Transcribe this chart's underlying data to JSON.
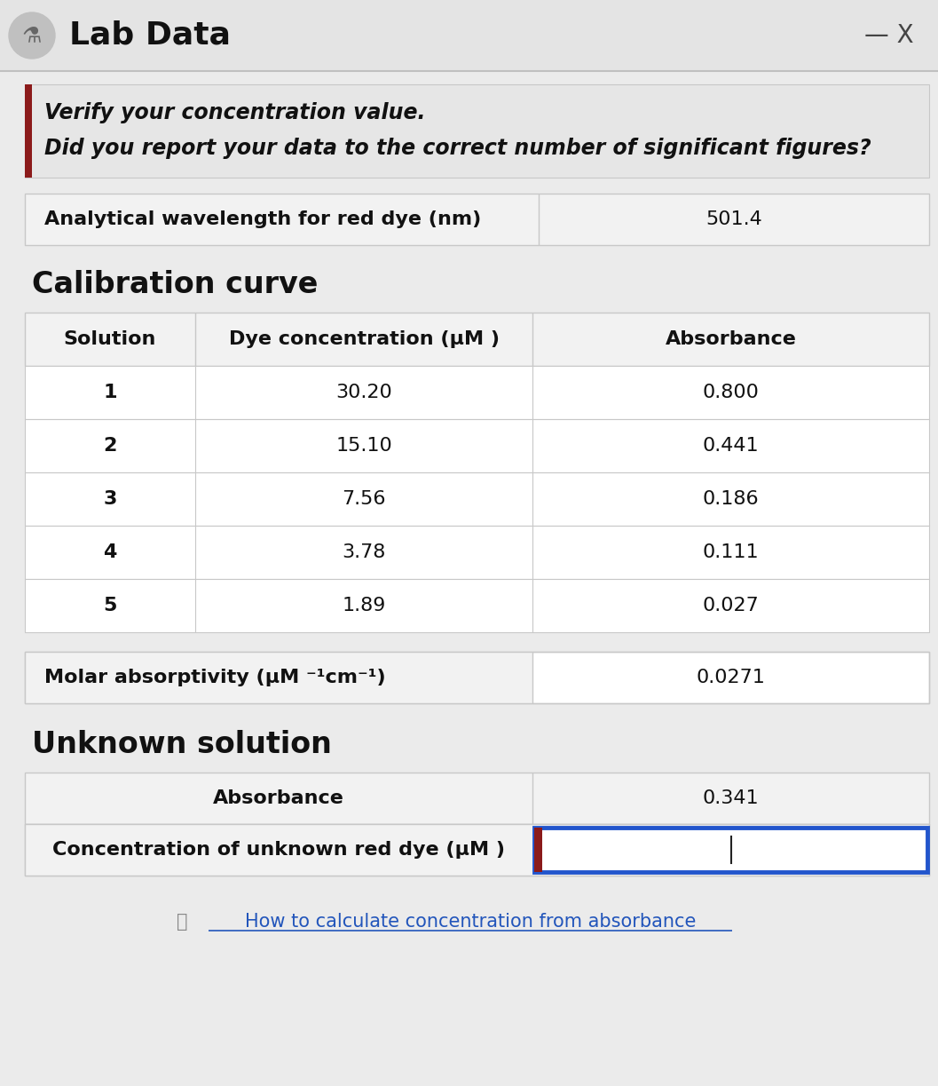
{
  "title": "Lab Data",
  "close_text": "— X",
  "warning_line1": "Verify your concentration value.",
  "warning_line2": "Did you report your data to the correct number of significant figures?",
  "analytical_wavelength_label": "Analytical wavelength for red dye (nm)",
  "analytical_wavelength_value": "501.4",
  "calibration_curve_title": "Calibration curve",
  "col_header_solution": "Solution",
  "col_header_conc_normal": "Dye concentration (μ",
  "col_header_conc_italic": "M",
  "col_header_conc_suffix": " )",
  "col_header_absorbance": "Absorbance",
  "solutions": [
    "1",
    "2",
    "3",
    "4",
    "5"
  ],
  "concentrations": [
    "30.20",
    "15.10",
    "7.56",
    "3.78",
    "1.89"
  ],
  "absorbances": [
    "0.800",
    "0.441",
    "0.186",
    "0.111",
    "0.027"
  ],
  "molar_absorptivity_value": "0.0271",
  "unknown_solution_title": "Unknown solution",
  "absorbance_label": "Absorbance",
  "absorbance_value": "0.341",
  "concentration_label_normal": "Concentration of unknown red dye (μ",
  "concentration_label_italic": "M",
  "concentration_label_suffix": " )",
  "link_text": "How to calculate concentration from absorbance",
  "bg_color": "#ebebeb",
  "title_bar_bg": "#e4e4e4",
  "white": "#ffffff",
  "cell_bg": "#f2f2f2",
  "dark_red": "#8B1A1A",
  "blue_border": "#2255CC",
  "text_dark": "#111111",
  "link_color": "#2255BB",
  "table_border": "#c8c8c8",
  "warning_bg": "#e6e6e6",
  "separator": "#c0c0c0"
}
